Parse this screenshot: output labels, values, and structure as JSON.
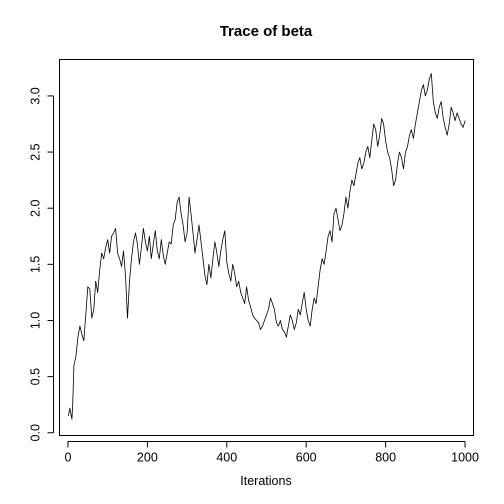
{
  "chart_data": {
    "type": "line",
    "title": "Trace of beta",
    "xlabel": "Iterations",
    "ylabel": "",
    "xlim": [
      -20,
      1020
    ],
    "ylim": [
      -0.02,
      3.32
    ],
    "xticks": [
      0,
      200,
      400,
      600,
      800,
      1000
    ],
    "xtick_labels": [
      "0",
      "200",
      "400",
      "600",
      "800",
      "1000"
    ],
    "yticks": [
      0.0,
      0.5,
      1.0,
      1.5,
      2.0,
      2.5,
      3.0
    ],
    "ytick_labels": [
      "0.0",
      "0.5",
      "1.0",
      "1.5",
      "2.0",
      "2.5",
      "3.0"
    ],
    "grid": false,
    "legend": "none",
    "series": [
      {
        "color": "#000000",
        "x": [
          1,
          5,
          10,
          12,
          15,
          20,
          25,
          30,
          35,
          40,
          45,
          50,
          55,
          60,
          65,
          70,
          75,
          80,
          85,
          90,
          95,
          100,
          105,
          110,
          115,
          120,
          125,
          130,
          135,
          140,
          145,
          150,
          155,
          160,
          165,
          170,
          175,
          180,
          185,
          190,
          195,
          200,
          205,
          210,
          215,
          220,
          225,
          230,
          235,
          240,
          245,
          250,
          255,
          260,
          265,
          270,
          275,
          280,
          285,
          290,
          295,
          300,
          305,
          310,
          315,
          320,
          325,
          330,
          335,
          340,
          345,
          350,
          355,
          360,
          365,
          370,
          375,
          380,
          385,
          390,
          395,
          400,
          405,
          410,
          415,
          420,
          425,
          430,
          435,
          440,
          445,
          450,
          455,
          460,
          465,
          470,
          475,
          480,
          485,
          490,
          495,
          500,
          505,
          510,
          515,
          520,
          525,
          530,
          535,
          540,
          545,
          550,
          555,
          560,
          565,
          570,
          575,
          580,
          585,
          590,
          595,
          600,
          605,
          610,
          615,
          620,
          625,
          630,
          635,
          640,
          645,
          650,
          655,
          660,
          665,
          670,
          675,
          680,
          685,
          690,
          695,
          700,
          705,
          710,
          715,
          720,
          725,
          730,
          735,
          740,
          745,
          750,
          755,
          760,
          765,
          770,
          775,
          780,
          785,
          790,
          795,
          800,
          805,
          810,
          815,
          820,
          825,
          830,
          835,
          840,
          845,
          850,
          855,
          860,
          865,
          870,
          875,
          880,
          885,
          890,
          895,
          900,
          905,
          910,
          915,
          920,
          925,
          930,
          935,
          940,
          945,
          950,
          955,
          960,
          965,
          970,
          975,
          980,
          985,
          990,
          995,
          1000
        ],
        "values": [
          0.15,
          0.22,
          0.12,
          0.25,
          0.6,
          0.68,
          0.85,
          0.95,
          0.88,
          0.82,
          1.05,
          1.3,
          1.28,
          1.02,
          1.1,
          1.35,
          1.25,
          1.45,
          1.6,
          1.55,
          1.65,
          1.72,
          1.6,
          1.75,
          1.78,
          1.82,
          1.6,
          1.55,
          1.48,
          1.62,
          1.4,
          1.02,
          1.35,
          1.55,
          1.7,
          1.78,
          1.68,
          1.5,
          1.65,
          1.82,
          1.7,
          1.62,
          1.75,
          1.55,
          1.68,
          1.8,
          1.62,
          1.55,
          1.72,
          1.58,
          1.5,
          1.6,
          1.7,
          1.68,
          1.85,
          1.9,
          2.05,
          2.1,
          1.95,
          1.85,
          1.7,
          1.78,
          2.1,
          1.95,
          1.78,
          1.6,
          1.72,
          1.85,
          1.7,
          1.55,
          1.4,
          1.32,
          1.5,
          1.38,
          1.55,
          1.7,
          1.6,
          1.48,
          1.62,
          1.72,
          1.8,
          1.52,
          1.42,
          1.35,
          1.5,
          1.42,
          1.3,
          1.35,
          1.25,
          1.2,
          1.15,
          1.3,
          1.18,
          1.12,
          1.05,
          1.02,
          1.0,
          0.98,
          0.92,
          0.95,
          1.0,
          1.05,
          1.1,
          1.2,
          1.15,
          1.1,
          0.98,
          0.95,
          1.0,
          0.92,
          0.9,
          0.85,
          0.95,
          1.05,
          1.0,
          0.92,
          0.98,
          1.1,
          1.05,
          1.15,
          1.25,
          1.1,
          1.0,
          0.95,
          1.1,
          1.2,
          1.15,
          1.3,
          1.45,
          1.55,
          1.5,
          1.62,
          1.75,
          1.8,
          1.7,
          1.95,
          2.0,
          1.9,
          1.8,
          1.85,
          1.95,
          2.1,
          2.0,
          2.15,
          2.25,
          2.2,
          2.3,
          2.4,
          2.45,
          2.35,
          2.4,
          2.5,
          2.55,
          2.45,
          2.6,
          2.75,
          2.7,
          2.55,
          2.65,
          2.8,
          2.75,
          2.6,
          2.5,
          2.45,
          2.35,
          2.2,
          2.25,
          2.4,
          2.5,
          2.45,
          2.35,
          2.5,
          2.55,
          2.65,
          2.7,
          2.62,
          2.75,
          2.85,
          2.95,
          3.05,
          3.1,
          3.0,
          3.05,
          3.15,
          3.2,
          2.95,
          2.85,
          2.8,
          2.9,
          2.95,
          2.8,
          2.72,
          2.65,
          2.75,
          2.9,
          2.85,
          2.78,
          2.85,
          2.8,
          2.75,
          2.72,
          2.78
        ]
      }
    ]
  }
}
